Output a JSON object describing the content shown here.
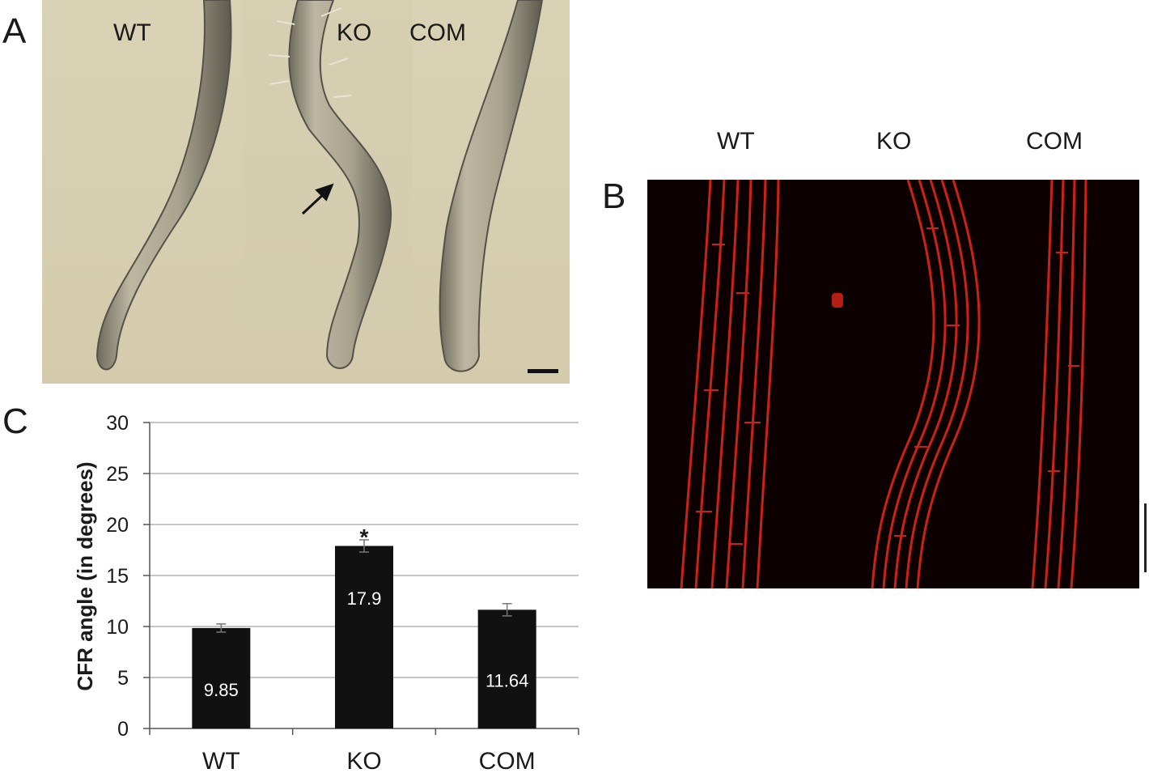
{
  "panel_a": {
    "letter": "A",
    "labels": [
      "WT",
      "KO",
      "COM"
    ]
  },
  "panel_b": {
    "letter": "B",
    "labels": [
      "WT",
      "KO",
      "COM"
    ]
  },
  "panel_c": {
    "letter": "C"
  },
  "colors": {
    "bar": "#111111",
    "grid": "#b3b3b3",
    "bar_label": "#ffffff",
    "fluorescence": "#e0261a"
  },
  "chart_data": {
    "type": "bar",
    "categories": [
      "WT",
      "KO",
      "COM"
    ],
    "values": [
      9.85,
      17.9,
      11.64
    ],
    "errors": [
      0.4,
      0.6,
      0.6
    ],
    "data_labels": [
      "9.85",
      "17.9",
      "11.64"
    ],
    "significance": [
      "",
      "*",
      ""
    ],
    "title": "",
    "xlabel": "",
    "ylabel": "CFR angle (in degrees)",
    "ylim": [
      0,
      30
    ],
    "yticks": [
      0,
      5,
      10,
      15,
      20,
      25,
      30
    ],
    "grid": true,
    "legend": "none"
  }
}
